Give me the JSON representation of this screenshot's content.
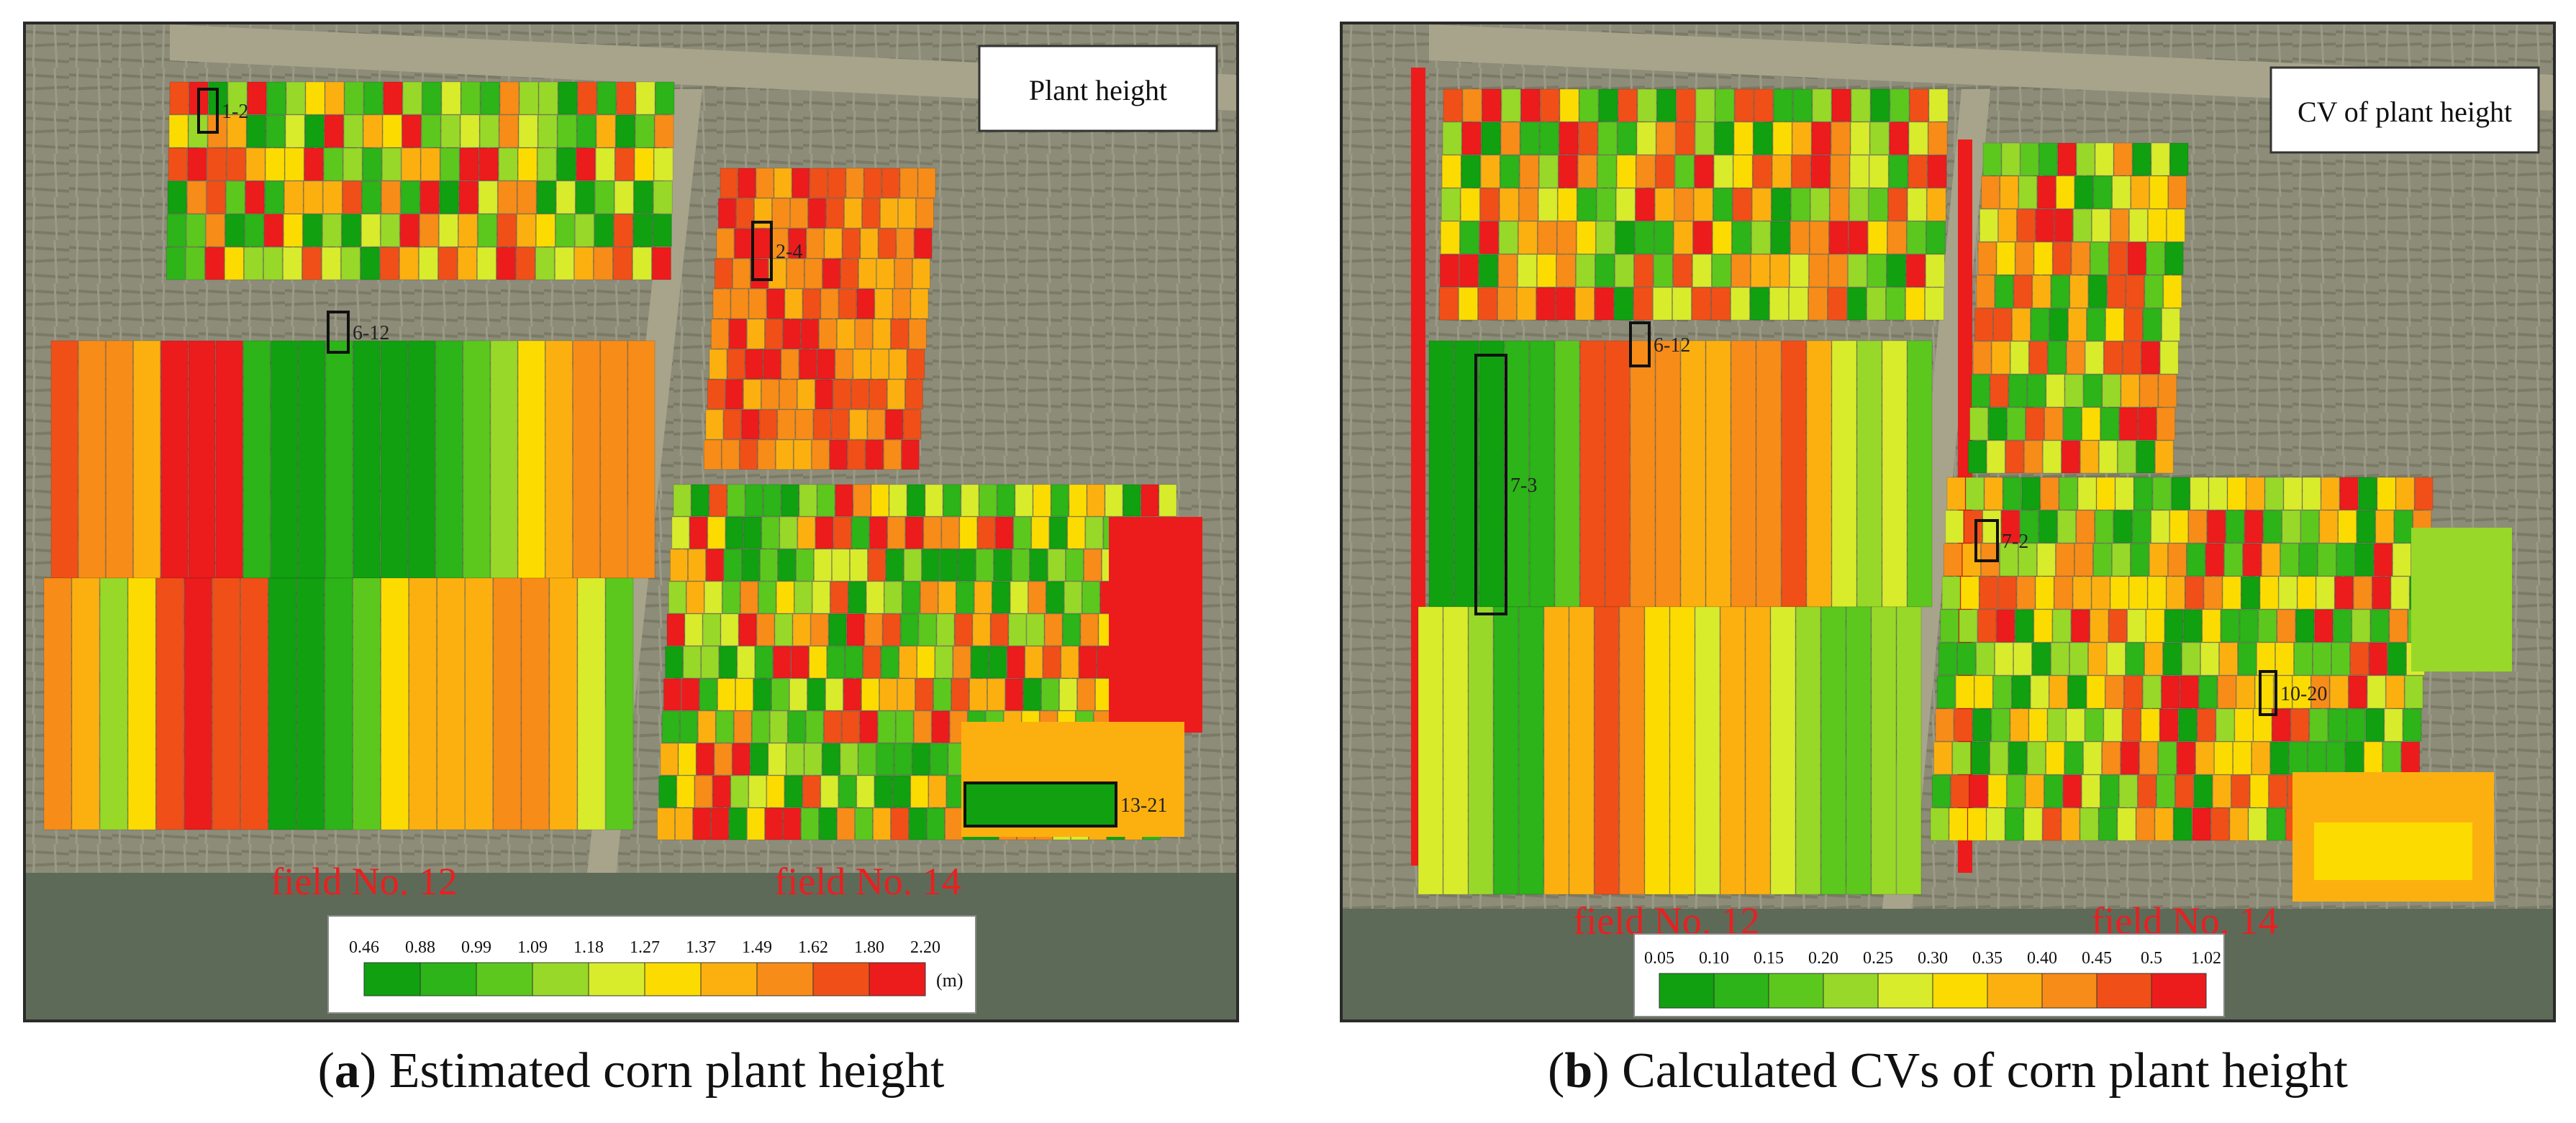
{
  "panel_a": {
    "title": "Plant height",
    "fields": [
      "field No.  12",
      "field No.  14"
    ],
    "plot_labels": [
      "1-2",
      "2-4",
      "6-12",
      "13-21"
    ],
    "legend": {
      "ticks": [
        "0.46",
        "0.88",
        "0.99",
        "1.09",
        "1.18",
        "1.27",
        "1.37",
        "1.49",
        "1.62",
        "1.80",
        "2.20"
      ],
      "unit": "(m)",
      "colors": [
        "#10a010",
        "#2cb418",
        "#5cc81e",
        "#98d828",
        "#d8ec2c",
        "#fcdc00",
        "#fcb010",
        "#f88c18",
        "#f05018",
        "#ec1c1c"
      ]
    },
    "caption_letter": "a",
    "caption_text": "Estimated corn plant height"
  },
  "panel_b": {
    "title": "CV of plant height",
    "fields": [
      "field No.  12",
      "field No.  14"
    ],
    "plot_labels": [
      "6-12",
      "7-3",
      "7-2",
      "10-20"
    ],
    "legend": {
      "ticks": [
        "0.05",
        "0.10",
        "0.15",
        "0.20",
        "0.25",
        "0.30",
        "0.35",
        "0.40",
        "0.45",
        "0.5",
        "1.02"
      ],
      "unit": "",
      "colors": [
        "#10a010",
        "#2cb418",
        "#5cc81e",
        "#98d828",
        "#d8ec2c",
        "#fcdc00",
        "#fcb010",
        "#f88c18",
        "#f05018",
        "#ec1c1c"
      ]
    },
    "caption_letter": "b",
    "caption_text": "Calculated CVs of corn plant height"
  }
}
